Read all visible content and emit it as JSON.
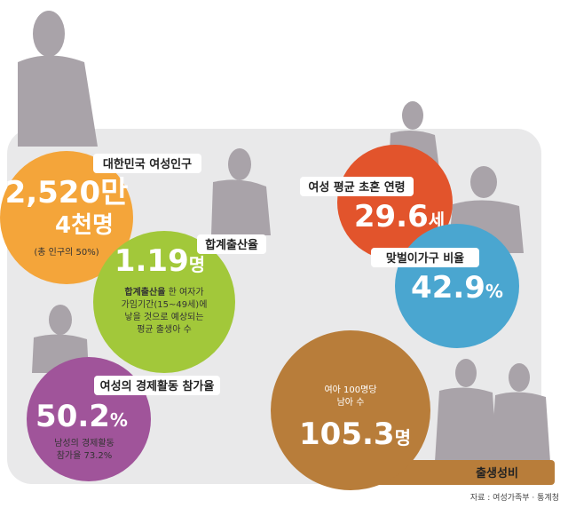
{
  "stats": [
    {
      "label": "대한민국 여성인구",
      "value": "2,520만",
      "value2": "4천명",
      "note_lines": [
        "(총 인구의 50%)"
      ]
    },
    {
      "label": "합계출산율",
      "value": "1.19",
      "unit": "명",
      "note_term": "합계출산율",
      "note_lines": [
        "한 여자가",
        "가임기간(15~49세)에",
        "낳을 것으로 예상되는",
        "평균 출생아 수"
      ]
    },
    {
      "label": "여성 평균 초혼 연령",
      "value": "29.6",
      "unit": "세"
    },
    {
      "label": "맞벌이가구 비율",
      "value": "42.9",
      "unit": "%"
    },
    {
      "label": "여성의 경제활동 참가율",
      "value": "50.2",
      "unit": "%",
      "note_lines": [
        "남성의 경제활동",
        "참가율 73.2%"
      ]
    },
    {
      "label": "출생성비",
      "value": "105.3",
      "unit": "명",
      "note_lines": [
        "여아 100명당",
        "남아 수"
      ]
    }
  ],
  "source": "자료 : 여성가족부 · 통계청"
}
